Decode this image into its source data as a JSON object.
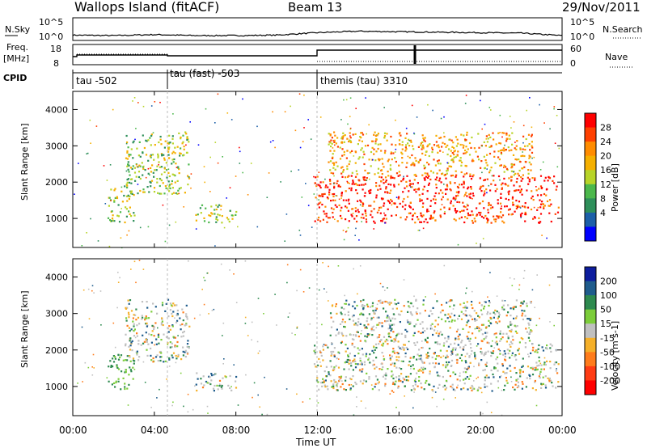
{
  "header": {
    "title": "Wallops Island (fitACF)",
    "beam": "Beam 13",
    "date": "29/Nov/2011"
  },
  "noise_panel": {
    "left_label": "N.Sky",
    "left_ticks": [
      "10^5",
      "10^0"
    ],
    "right_label": "N.Search",
    "right_ticks": [
      "10^5",
      "10^0"
    ]
  },
  "freq_panel": {
    "left_label_1": "Freq.",
    "left_label_2": "[MHz]",
    "left_ticks": [
      "18",
      "8"
    ],
    "right_label": "Nave",
    "right_ticks": [
      "60",
      "0"
    ]
  },
  "cpid": {
    "label": "CPID",
    "segments": [
      {
        "name": "tau -502",
        "start_hour": 0
      },
      {
        "name": "tau (fast) -503",
        "start_hour": 4.75
      },
      {
        "name": "themis (tau) 3310",
        "start_hour": 12
      }
    ]
  },
  "power_panel": {
    "ylabel": "Slant Range [km]",
    "colorbar_label": "Power [dB]",
    "colorbar_ticks": [
      "28",
      "24",
      "20",
      "16",
      "12",
      "8",
      "4"
    ],
    "colorbar_colors": [
      "#ff0000",
      "#ff4000",
      "#ff8c00",
      "#f5b000",
      "#b8d428",
      "#4cb84c",
      "#2e8f5a",
      "#1c5fa8",
      "#0000ff"
    ]
  },
  "velocity_panel": {
    "ylabel": "Slant Range [km]",
    "colorbar_label": "Velocity [m s-1]",
    "colorbar_ticks": [
      "200",
      "100",
      "50",
      "15",
      "-15",
      "-50",
      "-100",
      "-200"
    ],
    "colorbar_colors": [
      "#0d1d9e",
      "#1f5c8c",
      "#2e8a4f",
      "#7ccd3a",
      "#c0c0c0",
      "#f5b02a",
      "#ff7c1c",
      "#ff3c14",
      "#ff0000"
    ]
  },
  "xaxis": {
    "label": "Time UT",
    "ticks": [
      "00:00",
      "04:00",
      "08:00",
      "12:00",
      "16:00",
      "20:00",
      "00:00"
    ]
  },
  "chart_data": {
    "type": "heatmap",
    "x_unit": "hours UT",
    "xlim": [
      0,
      24
    ],
    "ylim_km": [
      200,
      4500
    ],
    "y_ticks": [
      1000,
      2000,
      3000,
      4000
    ],
    "panels": [
      "N.Sky / N.Search",
      "Freq. / Nave",
      "CPID",
      "Power [dB]",
      "Velocity [m s-1]"
    ],
    "freq_step": {
      "x": [
        0,
        0.2,
        12,
        24
      ],
      "y": [
        12.5,
        13.5,
        16.2,
        16.2
      ]
    },
    "nsky": {
      "x": [
        0,
        2,
        4,
        6,
        8,
        10,
        12,
        14,
        16,
        18,
        20,
        22,
        24
      ],
      "y": [
        0.55,
        0.5,
        0.6,
        0.5,
        0.5,
        0.55,
        0.8,
        0.95,
        0.9,
        0.85,
        0.8,
        0.75,
        0.5
      ]
    },
    "power_regions": [
      {
        "x0": 1.7,
        "x1": 3.0,
        "y0": 900,
        "y1": 1900,
        "level": "green-red"
      },
      {
        "x0": 2.5,
        "x1": 5.7,
        "y0": 1700,
        "y1": 3400,
        "level": "green-red"
      },
      {
        "x0": 6.0,
        "x1": 8.0,
        "y0": 900,
        "y1": 1400,
        "level": "green-red"
      },
      {
        "x0": 11.8,
        "x1": 23.8,
        "y0": 900,
        "y1": 2200,
        "level": "red"
      },
      {
        "x0": 12.5,
        "x1": 22.5,
        "y0": 2200,
        "y1": 3400,
        "level": "orange"
      }
    ]
  }
}
